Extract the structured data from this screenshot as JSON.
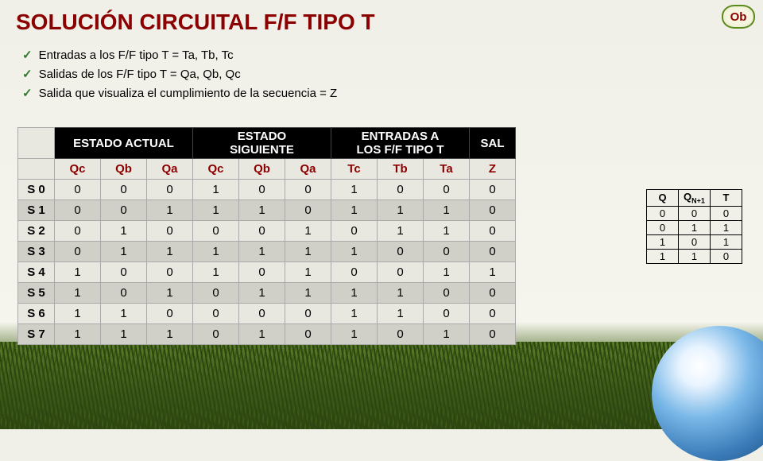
{
  "title": "SOLUCIÓN CIRCUITAL F/F TIPO T",
  "badge": "Ob",
  "bullets": [
    "Entradas a los F/F tipo T = Ta, Tb, Tc",
    "Salidas de los F/F tipo T = Qa, Qb, Qc",
    "Salida que visualiza el cumplimiento de la secuencia = Z"
  ],
  "mainTable": {
    "groupHeaders": [
      "",
      "ESTADO ACTUAL",
      "ESTADO SIGUIENTE",
      "ENTRADAS A LOS F/F TIPO T",
      "SAL"
    ],
    "groupSpans": [
      1,
      3,
      3,
      3,
      1
    ],
    "subHeaders": [
      "",
      "Qc",
      "Qb",
      "Qa",
      "Qc",
      "Qb",
      "Qa",
      "Tc",
      "Tb",
      "Ta",
      "Z"
    ],
    "rows": [
      {
        "state": "S 0",
        "vals": [
          "0",
          "0",
          "0",
          "1",
          "0",
          "0",
          "1",
          "0",
          "0",
          "0"
        ]
      },
      {
        "state": "S 1",
        "vals": [
          "0",
          "0",
          "1",
          "1",
          "1",
          "0",
          "1",
          "1",
          "1",
          "0"
        ]
      },
      {
        "state": "S 2",
        "vals": [
          "0",
          "1",
          "0",
          "0",
          "0",
          "1",
          "0",
          "1",
          "1",
          "0"
        ]
      },
      {
        "state": "S 3",
        "vals": [
          "0",
          "1",
          "1",
          "1",
          "1",
          "1",
          "1",
          "0",
          "0",
          "0"
        ]
      },
      {
        "state": "S 4",
        "vals": [
          "1",
          "0",
          "0",
          "1",
          "0",
          "1",
          "0",
          "0",
          "1",
          "1"
        ]
      },
      {
        "state": "S 5",
        "vals": [
          "1",
          "0",
          "1",
          "0",
          "1",
          "1",
          "1",
          "1",
          "0",
          "0"
        ]
      },
      {
        "state": "S 6",
        "vals": [
          "1",
          "1",
          "0",
          "0",
          "0",
          "0",
          "1",
          "1",
          "0",
          "0"
        ]
      },
      {
        "state": "S 7",
        "vals": [
          "1",
          "1",
          "1",
          "0",
          "1",
          "0",
          "1",
          "0",
          "1",
          "0"
        ]
      }
    ]
  },
  "smallTable": {
    "headers": [
      "Q",
      "QN+1",
      "T"
    ],
    "rows": [
      [
        "0",
        "0",
        "0"
      ],
      [
        "0",
        "1",
        "1"
      ],
      [
        "1",
        "0",
        "1"
      ],
      [
        "1",
        "1",
        "0"
      ]
    ]
  }
}
